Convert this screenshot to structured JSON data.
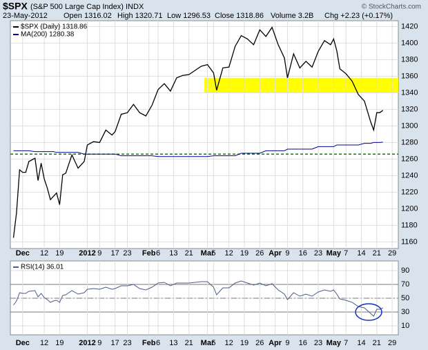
{
  "chart_data": [
    {
      "type": "line",
      "title": "$SPX",
      "subtitle": "(S&P 500 Large Cap Index) INDX",
      "date": "23-May-2012",
      "open": "Open 1316.02",
      "high": "High 1320.71",
      "low": "Low 1296.53",
      "close": "Close 1318.86",
      "volume": "Volume 3.2B",
      "change": "Chg +2.23 (+0.17%)",
      "source": "© StockCharts.com",
      "x": [
        0,
        1,
        2,
        3,
        4,
        5,
        7,
        8,
        9,
        10,
        11,
        12,
        13,
        14,
        15,
        16,
        17,
        18,
        19,
        21,
        23,
        24,
        26,
        28,
        30,
        32,
        33,
        35,
        37,
        39,
        41,
        43,
        45,
        47,
        49,
        51,
        53,
        55,
        57,
        59,
        61,
        63,
        65,
        66,
        68,
        70,
        72,
        74,
        76,
        78,
        80,
        82,
        84,
        86,
        88,
        89,
        91,
        93,
        95,
        97,
        99,
        101,
        103,
        104,
        105,
        106,
        108,
        110,
        112,
        114,
        116,
        117,
        118,
        119,
        120
      ],
      "series": [
        {
          "name": "$SPX (Daily) 1318.86",
          "color": "#000000",
          "values": [
            1165,
            1195,
            1247,
            1244,
            1244,
            1257,
            1261,
            1234,
            1255,
            1236,
            1225,
            1211,
            1215,
            1219,
            1205,
            1241,
            1243,
            1254,
            1265,
            1249,
            1257,
            1277,
            1281,
            1280,
            1295,
            1289,
            1293,
            1314,
            1316,
            1326,
            1316,
            1312,
            1325,
            1344,
            1351,
            1342,
            1358,
            1361,
            1362,
            1367,
            1372,
            1374,
            1364,
            1343,
            1370,
            1371,
            1396,
            1409,
            1405,
            1398,
            1416,
            1408,
            1419,
            1398,
            1382,
            1358,
            1387,
            1370,
            1378,
            1371,
            1390,
            1403,
            1398,
            1405,
            1391,
            1369,
            1363,
            1354,
            1338,
            1330,
            1305,
            1295,
            1316,
            1316,
            1318.86
          ]
        },
        {
          "name": "MA(200) 1280.38",
          "color": "#00008b",
          "values": [
            1270,
            1270,
            1270,
            1270,
            1270,
            1270,
            1269,
            1269,
            1269,
            1269,
            1269,
            1269,
            1269,
            1268,
            1268,
            1268,
            1268,
            1268,
            1268,
            1268,
            1266,
            1266,
            1266,
            1266,
            1266,
            1266,
            1266,
            1264,
            1264,
            1264,
            1264,
            1264,
            1264,
            1263,
            1263,
            1263,
            1263,
            1263,
            1263,
            1263,
            1263,
            1263,
            1264,
            1264,
            1264,
            1264,
            1264,
            1267,
            1267,
            1267,
            1267,
            1270,
            1270,
            1270,
            1270,
            1272,
            1272,
            1272,
            1272,
            1272,
            1275,
            1275,
            1275,
            1275,
            1277,
            1277,
            1277,
            1277,
            1277,
            1279,
            1279,
            1280,
            1280,
            1280,
            1280.38
          ]
        }
      ],
      "bands": [
        {
          "y": [
            1340,
            1358
          ],
          "x": [
            62,
            125
          ],
          "color": "#ffff00"
        }
      ],
      "hlines": [
        {
          "value": 1266,
          "color": "#008000"
        }
      ],
      "xlim": [
        -1,
        125
      ],
      "ylim": [
        1152,
        1427
      ],
      "yticks": [
        1160,
        1180,
        1200,
        1220,
        1240,
        1260,
        1280,
        1300,
        1320,
        1340,
        1360,
        1380,
        1400,
        1420
      ],
      "xticks": [
        {
          "value": 3,
          "label": "Dec"
        },
        {
          "value": 10,
          "label": "12"
        },
        {
          "value": 15,
          "label": "19"
        },
        {
          "value": 24,
          "label": "2012"
        },
        {
          "value": 28,
          "label": "9"
        },
        {
          "value": 33,
          "label": "17"
        },
        {
          "value": 37,
          "label": "23"
        },
        {
          "value": 44,
          "label": "Feb"
        },
        {
          "value": 47,
          "label": "6"
        },
        {
          "value": 52,
          "label": "13"
        },
        {
          "value": 57,
          "label": "21"
        },
        {
          "value": 63,
          "label": "Mar"
        },
        {
          "value": 65,
          "label": "5"
        },
        {
          "value": 70,
          "label": "12"
        },
        {
          "value": 75,
          "label": "19"
        },
        {
          "value": 80,
          "label": "26"
        },
        {
          "value": 85,
          "label": "Apr"
        },
        {
          "value": 89,
          "label": "9"
        },
        {
          "value": 94,
          "label": "16"
        },
        {
          "value": 99,
          "label": "23"
        },
        {
          "value": 104,
          "label": "May"
        },
        {
          "value": 108,
          "label": "7"
        },
        {
          "value": 113,
          "label": "14"
        },
        {
          "value": 118,
          "label": "21"
        },
        {
          "value": 123,
          "label": "29"
        }
      ],
      "grid": true
    },
    {
      "type": "line",
      "x": [
        0,
        1,
        2,
        3,
        4,
        5,
        7,
        8,
        9,
        10,
        11,
        12,
        13,
        14,
        15,
        16,
        17,
        18,
        19,
        21,
        23,
        24,
        26,
        28,
        30,
        32,
        33,
        35,
        37,
        39,
        41,
        43,
        45,
        47,
        49,
        51,
        53,
        55,
        57,
        59,
        61,
        63,
        65,
        66,
        68,
        70,
        72,
        74,
        76,
        78,
        80,
        82,
        84,
        86,
        88,
        89,
        91,
        93,
        95,
        97,
        99,
        101,
        103,
        104,
        105,
        106,
        108,
        110,
        112,
        114,
        116,
        117,
        118,
        119,
        120
      ],
      "series": [
        {
          "name": "RSI(14) 36.01",
          "color": "#4a5a8a",
          "values": [
            40,
            46,
            58,
            57,
            57,
            60,
            61,
            52,
            57,
            51,
            48,
            44,
            46,
            47,
            44,
            54,
            55,
            58,
            61,
            56,
            58,
            63,
            64,
            63,
            66,
            63,
            64,
            68,
            68,
            70,
            64,
            62,
            66,
            72,
            73,
            68,
            72,
            72,
            72,
            73,
            74,
            74,
            66,
            55,
            65,
            65,
            72,
            75,
            72,
            69,
            72,
            68,
            71,
            62,
            56,
            48,
            58,
            53,
            56,
            53,
            59,
            62,
            60,
            62,
            56,
            49,
            47,
            44,
            38,
            36,
            28,
            24,
            34,
            34,
            36.01
          ]
        }
      ],
      "xlim": [
        -1,
        125
      ],
      "ylim": [
        -3,
        104
      ],
      "yticks": [
        10,
        30,
        50,
        70,
        90
      ],
      "xticks": [
        {
          "value": 3,
          "label": "Dec"
        },
        {
          "value": 10,
          "label": "12"
        },
        {
          "value": 15,
          "label": "19"
        },
        {
          "value": 24,
          "label": "2012"
        },
        {
          "value": 28,
          "label": "9"
        },
        {
          "value": 33,
          "label": "17"
        },
        {
          "value": 37,
          "label": "23"
        },
        {
          "value": 44,
          "label": "Feb"
        },
        {
          "value": 47,
          "label": "6"
        },
        {
          "value": 52,
          "label": "13"
        },
        {
          "value": 57,
          "label": "21"
        },
        {
          "value": 63,
          "label": "Mar"
        },
        {
          "value": 65,
          "label": "5"
        },
        {
          "value": 70,
          "label": "12"
        },
        {
          "value": 75,
          "label": "19"
        },
        {
          "value": 80,
          "label": "26"
        },
        {
          "value": 85,
          "label": "Apr"
        },
        {
          "value": 89,
          "label": "9"
        },
        {
          "value": 94,
          "label": "16"
        },
        {
          "value": 99,
          "label": "23"
        },
        {
          "value": 104,
          "label": "May"
        },
        {
          "value": 108,
          "label": "7"
        },
        {
          "value": 113,
          "label": "14"
        },
        {
          "value": 118,
          "label": "21"
        },
        {
          "value": 123,
          "label": "29"
        }
      ],
      "grid": true
    }
  ]
}
